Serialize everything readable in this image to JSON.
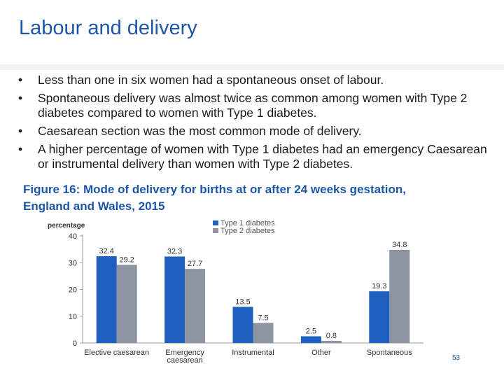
{
  "slide": {
    "title": "Labour and delivery",
    "bullets": [
      "Less than one in six women had a spontaneous onset of labour.",
      "Spontaneous delivery was almost twice as common among women with Type 2 diabetes compared to women with Type 1 diabetes.",
      "Caesarean section was the most common mode of delivery.",
      "A higher percentage of women with Type 1 diabetes had an emergency Caesarean or instrumental delivery than women with Type 2 diabetes."
    ],
    "figure_caption_line1": "Figure 16: Mode of delivery for births at or after 24 weeks gestation,",
    "figure_caption_line2": "England and Wales, 2015",
    "page_number": "53"
  },
  "chart_data": {
    "type": "bar",
    "ylabel": "percentage",
    "ylim": [
      0,
      40
    ],
    "yticks": [
      0,
      10,
      20,
      30,
      40
    ],
    "categories": [
      [
        "Elective caesarean"
      ],
      [
        "Emergency",
        "caesarean"
      ],
      [
        "Instrumental"
      ],
      [
        "Other"
      ],
      [
        "Spontaneous"
      ]
    ],
    "series": [
      {
        "name": "Type 1 diabetes",
        "color": "#1f5fbf",
        "values": [
          32.4,
          32.3,
          13.5,
          2.5,
          19.3
        ],
        "labels": [
          "32.4",
          "32.3",
          "13.5",
          "2.5",
          "19.3"
        ]
      },
      {
        "name": "Type 2 diabetes",
        "color": "#8c95a1",
        "values": [
          29.2,
          27.7,
          7.5,
          0.8,
          34.8
        ],
        "labels": [
          "29.2",
          "27.7",
          "7.5",
          "0.8",
          "34.8"
        ]
      }
    ],
    "legend_position": "top"
  }
}
